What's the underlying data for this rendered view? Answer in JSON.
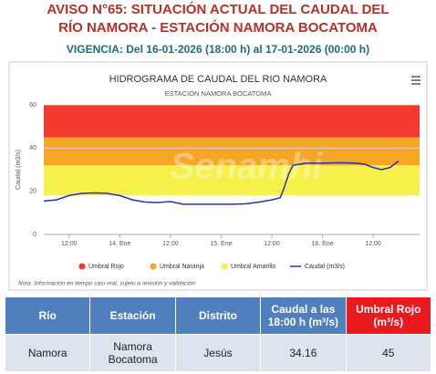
{
  "header": {
    "title_line1": "AVISO N°65: SITUACIÓN ACTUAL DEL CAUDAL DEL",
    "title_line2": "RÍO NAMORA - ESTACIÓN NAMORA BOCATOMA",
    "validity": "VIGENCIA: Del 16-01-2026 (18:00 h) al 17-01-2026 (00:00 h)"
  },
  "chart_data": {
    "type": "line",
    "title": "HIDROGRAMA DE CAUDAL DEL RIO NAMORA",
    "subtitle": "ESTACION NAMORA BOCATOMA",
    "watermark": "Senamhi",
    "y_label": "Caudal (m3/s)",
    "note": "Nota: Información en tiempo casi real, sujeto a revisión y validación",
    "ylim": [
      0,
      60
    ],
    "yticks": [
      0,
      20,
      40,
      60
    ],
    "grid": true,
    "xlim": [
      6,
      95
    ],
    "xticks": [
      {
        "value": 12,
        "label": "12:00"
      },
      {
        "value": 24,
        "label": "14. Ene"
      },
      {
        "value": 36,
        "label": "12:00"
      },
      {
        "value": 48,
        "label": "15. Ene"
      },
      {
        "value": 60,
        "label": "12:00"
      },
      {
        "value": 72,
        "label": "16. Ene"
      },
      {
        "value": 84,
        "label": "12:00"
      }
    ],
    "bands": [
      {
        "name": "Umbral Rojo",
        "color": "#f23a2e",
        "from": 45,
        "to": 60
      },
      {
        "name": "Umbral Naranja",
        "color": "#f5a623",
        "from": 32,
        "to": 45
      },
      {
        "name": "Umbral Amarillo",
        "color": "#f6f04a",
        "from": 18,
        "to": 32
      }
    ],
    "series": [
      {
        "name": "Caudal (m3/s)",
        "color": "#2a2fb5",
        "x": [
          6,
          9,
          12,
          15,
          18,
          21,
          24,
          27,
          30,
          33,
          36,
          39,
          42,
          45,
          48,
          51,
          54,
          57,
          60,
          62,
          63,
          64,
          65,
          68,
          72,
          76,
          80,
          82,
          84,
          86,
          88,
          90
        ],
        "values": [
          15.5,
          16,
          18,
          19,
          19.2,
          19,
          18,
          16,
          15,
          14.8,
          15.2,
          14,
          14,
          14,
          14,
          14,
          14.2,
          15,
          16,
          17,
          22,
          28,
          32,
          33,
          33,
          33.2,
          33,
          32.5,
          31,
          30,
          31,
          34
        ]
      }
    ]
  },
  "table": {
    "headers": [
      "Río",
      "Estación",
      "Distrito",
      "Caudal a las 18:00 h (m³/s)",
      "Umbral Rojo (m³/s)"
    ],
    "rows": [
      [
        "Namora",
        "Namora Bocatoma",
        "Jesús",
        "34.16",
        "45"
      ]
    ]
  }
}
